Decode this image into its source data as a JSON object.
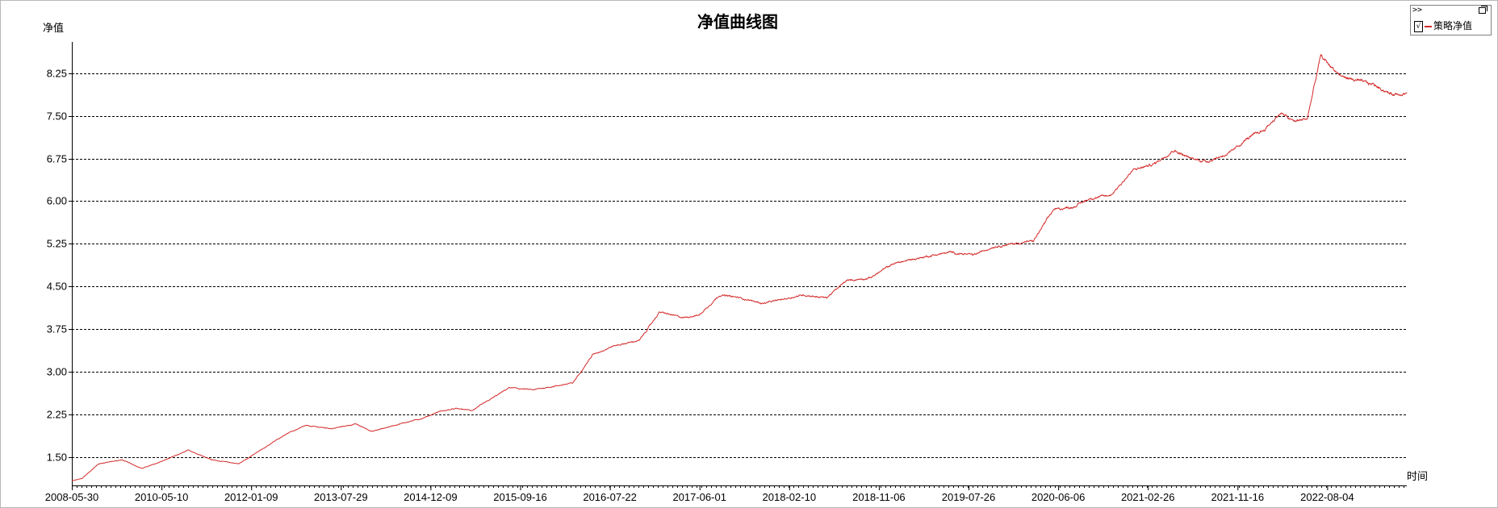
{
  "chart_data": {
    "type": "line",
    "title": "净值曲线图",
    "xlabel": "时间",
    "ylabel": "净值",
    "ylim": [
      1.0,
      8.8
    ],
    "yticks": [
      1.5,
      2.25,
      3.0,
      3.75,
      4.5,
      5.25,
      6.0,
      6.75,
      7.5,
      8.25
    ],
    "ytick_labels": [
      "1.50",
      "2.25",
      "3.00",
      "3.75",
      "4.50",
      "5.25",
      "6.00",
      "6.75",
      "7.50",
      "8.25"
    ],
    "xtick_labels": [
      "2008-05-30",
      "2010-05-10",
      "2012-01-09",
      "2013-07-29",
      "2014-12-09",
      "2015-09-16",
      "2016-07-22",
      "2017-06-01",
      "2018-02-10",
      "2018-11-06",
      "2019-07-26",
      "2020-06-06",
      "2021-02-26",
      "2021-11-16",
      "2022-08-04"
    ],
    "grid": "horizontal-dashed",
    "legend_placement": "top-right",
    "series": [
      {
        "name": "策略净值",
        "color": "#d42a2a",
        "x_index": [
          0,
          30,
          80,
          150,
          210,
          250,
          310,
          350,
          420,
          500,
          560,
          640,
          700,
          780,
          850,
          900,
          980,
          1050,
          1100,
          1150,
          1200,
          1250,
          1310,
          1380,
          1450,
          1500,
          1560,
          1620,
          1700,
          1760,
          1830,
          1880,
          1940,
          2000,
          2070,
          2110,
          2190,
          2260,
          2320,
          2390,
          2460,
          2520,
          2580,
          2630,
          2700,
          2760,
          2820,
          2880,
          2940,
          3000,
          3050,
          3110,
          3180,
          3240,
          3300,
          3350,
          3400,
          3470,
          3520,
          3570,
          3620,
          3660,
          3700,
          3740,
          3800,
          3860,
          3900,
          3950,
          3998
        ],
        "values": [
          1.08,
          1.12,
          1.38,
          1.45,
          1.3,
          1.38,
          1.52,
          1.62,
          1.45,
          1.38,
          1.6,
          1.9,
          2.05,
          2.0,
          2.08,
          1.95,
          2.08,
          2.18,
          2.3,
          2.35,
          2.32,
          2.5,
          2.72,
          2.68,
          2.75,
          2.8,
          3.3,
          3.45,
          3.55,
          4.05,
          3.95,
          4.0,
          4.35,
          4.3,
          4.2,
          4.25,
          4.35,
          4.3,
          4.6,
          4.65,
          4.9,
          4.98,
          5.05,
          5.1,
          5.05,
          5.2,
          5.25,
          5.3,
          5.85,
          5.9,
          6.05,
          6.1,
          6.55,
          6.65,
          6.9,
          6.75,
          6.7,
          6.85,
          7.1,
          7.25,
          7.55,
          7.4,
          7.45,
          8.55,
          8.2,
          8.1,
          8.05,
          7.88,
          7.9
        ]
      }
    ]
  },
  "legend": {
    "expand_label": ">>",
    "checkbox_label": "√",
    "entry_label": "策略净值"
  }
}
